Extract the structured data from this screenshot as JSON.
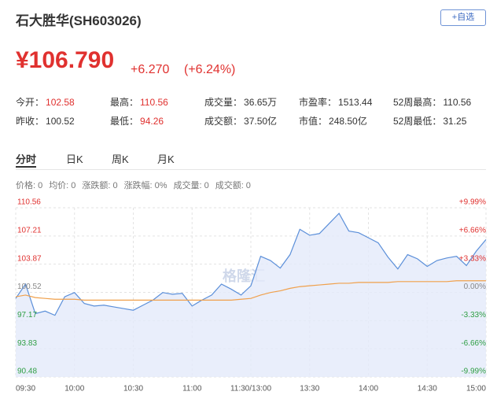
{
  "header": {
    "title": "石大胜华(SH603026)",
    "button": "+自选",
    "price": "¥106.790",
    "change": "+6.270",
    "change_pct": "(+6.24%)"
  },
  "stats": [
    [
      {
        "label": "今开：",
        "value": "102.58"
      },
      {
        "label": "最高：",
        "value": "110.56"
      },
      {
        "label": "成交量：",
        "value": "36.65万"
      },
      {
        "label": "市盈率：",
        "value": "1513.44"
      },
      {
        "label": "52周最高：",
        "value": "110.56"
      }
    ],
    [
      {
        "label": "昨收：",
        "value": "100.52"
      },
      {
        "label": "最低：",
        "value": "94.26"
      },
      {
        "label": "成交额：",
        "value": "37.50亿"
      },
      {
        "label": "市值：",
        "value": "248.50亿"
      },
      {
        "label": "52周最低：",
        "value": "31.25"
      }
    ]
  ],
  "tabs": [
    "分时",
    "日K",
    "周K",
    "月K"
  ],
  "info": [
    {
      "label": "价格:",
      "value": "0"
    },
    {
      "label": "均价:",
      "value": "0"
    },
    {
      "label": "涨跌额:",
      "value": "0"
    },
    {
      "label": "涨跌幅:",
      "value": "0%"
    },
    {
      "label": "成交量:",
      "value": "0"
    },
    {
      "label": "成交额:",
      "value": "0"
    }
  ],
  "chart_data": {
    "type": "line",
    "watermark": "格隆汇",
    "x": [
      "09:30",
      "09:35",
      "09:40",
      "09:45",
      "09:50",
      "09:55",
      "10:00",
      "10:05",
      "10:10",
      "10:15",
      "10:20",
      "10:25",
      "10:30",
      "10:35",
      "10:40",
      "10:45",
      "10:50",
      "10:55",
      "11:00",
      "11:05",
      "11:10",
      "11:15",
      "11:20",
      "11:25",
      "11:30",
      "13:05",
      "13:10",
      "13:15",
      "13:20",
      "13:25",
      "13:30",
      "13:35",
      "13:40",
      "13:45",
      "13:50",
      "13:55",
      "14:00",
      "14:05",
      "14:10",
      "14:15",
      "14:20",
      "14:25",
      "14:30",
      "14:35",
      "14:40",
      "14:45",
      "14:50",
      "14:55",
      "15:00"
    ],
    "series": [
      {
        "name": "价格",
        "color": "#5b8fd9",
        "fill": "#e3eafa",
        "values": [
          99.8,
          101.5,
          98.0,
          98.3,
          97.8,
          100.0,
          100.5,
          99.2,
          98.9,
          99.0,
          98.8,
          98.6,
          98.4,
          99.0,
          99.6,
          100.5,
          100.3,
          100.4,
          98.9,
          99.6,
          100.2,
          101.5,
          100.9,
          100.2,
          101.3,
          104.8,
          104.3,
          103.4,
          105.0,
          108.0,
          107.3,
          107.5,
          108.7,
          109.9,
          107.8,
          107.6,
          107.0,
          106.4,
          104.7,
          103.3,
          105.0,
          104.5,
          103.6,
          104.3,
          104.6,
          104.8,
          103.7,
          105.4,
          106.79
        ]
      },
      {
        "name": "均价",
        "color": "#f0a04b",
        "values": [
          100.0,
          100.2,
          99.9,
          99.8,
          99.7,
          99.7,
          99.7,
          99.6,
          99.6,
          99.6,
          99.6,
          99.6,
          99.6,
          99.6,
          99.6,
          99.6,
          99.6,
          99.6,
          99.6,
          99.6,
          99.6,
          99.6,
          99.6,
          99.7,
          99.8,
          100.2,
          100.5,
          100.7,
          101.0,
          101.2,
          101.3,
          101.4,
          101.5,
          101.6,
          101.6,
          101.7,
          101.7,
          101.7,
          101.7,
          101.8,
          101.8,
          101.8,
          101.8,
          101.8,
          101.8,
          101.9,
          101.9,
          101.9,
          101.9
        ]
      }
    ],
    "ylim": [
      90.48,
      110.56
    ],
    "yticks": [
      110.56,
      107.21,
      103.87,
      100.52,
      97.17,
      93.83,
      90.48
    ],
    "y2lim": [
      -9.99,
      9.99
    ],
    "y2ticks": [
      {
        "value": 9.99,
        "label": "+9.99%"
      },
      {
        "value": 6.66,
        "label": "+6.66%"
      },
      {
        "value": 3.33,
        "label": "+3.33%"
      },
      {
        "value": 0,
        "label": "0.00%"
      },
      {
        "value": -3.33,
        "label": "-3.33%"
      },
      {
        "value": -6.66,
        "label": "-6.66%"
      },
      {
        "value": -9.99,
        "label": "-9.99%"
      }
    ],
    "xticks": [
      "09:30",
      "10:00",
      "10:30",
      "11:00",
      "11:30/13:00",
      "13:30",
      "14:00",
      "14:30",
      "15:00"
    ],
    "grid": true
  }
}
